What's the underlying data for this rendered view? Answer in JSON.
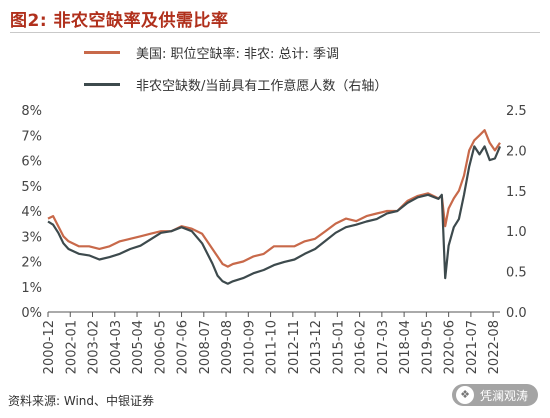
{
  "figure_title": "图2: 非农空缺率及供需比率",
  "source_note": "资料来源: Wind、中银证券",
  "watermark": {
    "text": "凭澜观涛",
    "icon": "wechat-icon"
  },
  "colors": {
    "title": "#b0301c",
    "series_openings_rate": "#c8694a",
    "series_ratio": "#3d4a4d",
    "axis": "#555555"
  },
  "chart_data": {
    "type": "line",
    "title": "",
    "xlabel": "",
    "ylabel": "",
    "x_tick_labels": [
      "2000-12",
      "2002-01",
      "2003-02",
      "2004-03",
      "2005-04",
      "2006-05",
      "2007-06",
      "2008-07",
      "2009-08",
      "2010-09",
      "2011-10",
      "2012-11",
      "2013-12",
      "2015-01",
      "2016-02",
      "2017-03",
      "2018-04",
      "2019-05",
      "2020-06",
      "2021-07",
      "2022-08"
    ],
    "x_tick_dates": [
      "2000-12",
      "2002-01",
      "2003-02",
      "2004-03",
      "2005-04",
      "2006-05",
      "2007-06",
      "2008-07",
      "2009-08",
      "2010-09",
      "2011-10",
      "2012-11",
      "2013-12",
      "2015-01",
      "2016-02",
      "2017-03",
      "2018-04",
      "2019-05",
      "2020-06",
      "2021-07",
      "2022-08"
    ],
    "x_range": [
      "2000-12",
      "2022-12"
    ],
    "y_left": {
      "ticks": [
        "0%",
        "1%",
        "2%",
        "3%",
        "4%",
        "5%",
        "6%",
        "7%",
        "8%"
      ],
      "range": [
        0,
        8
      ],
      "unit": "%"
    },
    "y_right": {
      "ticks": [
        "0.0",
        "0.5",
        "1.0",
        "1.5",
        "2.0",
        "2.5"
      ],
      "range": [
        0,
        2.5
      ]
    },
    "grid": false,
    "legend_position": "top-left",
    "series": [
      {
        "name": "美国: 职位空缺率: 非农: 总计: 季调",
        "axis": "left",
        "x": [
          "2000-12",
          "2001-03",
          "2001-06",
          "2001-09",
          "2001-12",
          "2002-06",
          "2002-12",
          "2003-06",
          "2003-12",
          "2004-06",
          "2004-12",
          "2005-06",
          "2005-12",
          "2006-06",
          "2006-12",
          "2007-06",
          "2007-12",
          "2008-06",
          "2008-12",
          "2009-03",
          "2009-06",
          "2009-09",
          "2009-12",
          "2010-06",
          "2010-12",
          "2011-06",
          "2011-12",
          "2012-06",
          "2012-12",
          "2013-06",
          "2013-12",
          "2014-06",
          "2014-12",
          "2015-06",
          "2015-12",
          "2016-06",
          "2016-12",
          "2017-06",
          "2017-12",
          "2018-06",
          "2018-12",
          "2019-06",
          "2019-12",
          "2020-02",
          "2020-04",
          "2020-06",
          "2020-09",
          "2020-12",
          "2021-03",
          "2021-06",
          "2021-09",
          "2021-12",
          "2022-03",
          "2022-06",
          "2022-09",
          "2022-12"
        ],
        "values": [
          3.7,
          3.8,
          3.4,
          3.0,
          2.8,
          2.6,
          2.6,
          2.5,
          2.6,
          2.8,
          2.9,
          3.0,
          3.1,
          3.2,
          3.2,
          3.4,
          3.3,
          3.1,
          2.5,
          2.2,
          1.9,
          1.8,
          1.9,
          2.0,
          2.2,
          2.3,
          2.6,
          2.6,
          2.6,
          2.8,
          2.9,
          3.2,
          3.5,
          3.7,
          3.6,
          3.8,
          3.9,
          4.0,
          4.0,
          4.4,
          4.6,
          4.7,
          4.5,
          4.6,
          3.4,
          4.1,
          4.5,
          4.8,
          5.4,
          6.4,
          6.8,
          7.0,
          7.2,
          6.7,
          6.4,
          6.7
        ]
      },
      {
        "name": "非农空缺数/当前具有工作意愿人数（右轴）",
        "axis": "right",
        "x": [
          "2000-12",
          "2001-03",
          "2001-06",
          "2001-09",
          "2001-12",
          "2002-06",
          "2002-12",
          "2003-06",
          "2003-12",
          "2004-06",
          "2004-12",
          "2005-06",
          "2005-12",
          "2006-06",
          "2006-12",
          "2007-06",
          "2007-12",
          "2008-06",
          "2008-12",
          "2009-03",
          "2009-06",
          "2009-09",
          "2009-12",
          "2010-06",
          "2010-12",
          "2011-06",
          "2011-12",
          "2012-06",
          "2012-12",
          "2013-06",
          "2013-12",
          "2014-06",
          "2014-12",
          "2015-06",
          "2015-12",
          "2016-06",
          "2016-12",
          "2017-06",
          "2017-12",
          "2018-06",
          "2018-12",
          "2019-06",
          "2019-12",
          "2020-02",
          "2020-04",
          "2020-06",
          "2020-09",
          "2020-12",
          "2021-03",
          "2021-06",
          "2021-09",
          "2021-12",
          "2022-03",
          "2022-06",
          "2022-09",
          "2022-12"
        ],
        "values": [
          1.12,
          1.08,
          0.98,
          0.85,
          0.78,
          0.72,
          0.7,
          0.65,
          0.68,
          0.72,
          0.78,
          0.82,
          0.9,
          0.98,
          1.0,
          1.05,
          1.0,
          0.85,
          0.6,
          0.45,
          0.38,
          0.35,
          0.38,
          0.42,
          0.48,
          0.52,
          0.58,
          0.62,
          0.65,
          0.72,
          0.78,
          0.88,
          0.98,
          1.05,
          1.08,
          1.12,
          1.15,
          1.22,
          1.25,
          1.35,
          1.42,
          1.45,
          1.4,
          1.45,
          0.42,
          0.82,
          1.05,
          1.15,
          1.45,
          1.8,
          2.05,
          1.95,
          2.05,
          1.88,
          1.9,
          2.05
        ]
      }
    ]
  }
}
